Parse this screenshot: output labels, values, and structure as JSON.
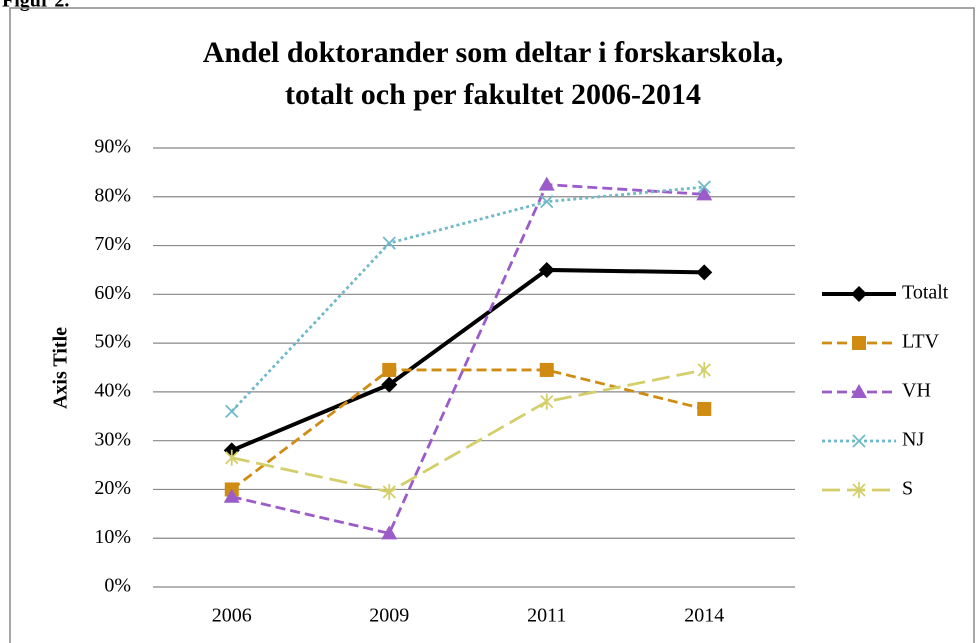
{
  "figure_label": "Figur 2.",
  "chart_data": {
    "type": "line",
    "title": [
      "Andel doktorander som deltar i forskarskola,",
      "totalt och per fakultet 2006-2014"
    ],
    "y_axis_label": "Axis Title",
    "categories": [
      "2006",
      "2009",
      "2011",
      "2014"
    ],
    "ylim": [
      0,
      90
    ],
    "yticks": [
      {
        "value": 0,
        "label": "0%"
      },
      {
        "value": 10,
        "label": "10%"
      },
      {
        "value": 20,
        "label": "20%"
      },
      {
        "value": 30,
        "label": "30%"
      },
      {
        "value": 40,
        "label": "40%"
      },
      {
        "value": 50,
        "label": "50%"
      },
      {
        "value": 60,
        "label": "60%"
      },
      {
        "value": 70,
        "label": "70%"
      },
      {
        "value": 80,
        "label": "80%"
      },
      {
        "value": 90,
        "label": "90%"
      }
    ],
    "grid": true,
    "legend": "right",
    "series": [
      {
        "name": "Totalt",
        "color": "#000000",
        "marker": "diamond",
        "dash": "solid",
        "values": [
          28,
          41.5,
          65,
          64.5
        ]
      },
      {
        "name": "LTV",
        "color": "#d08c12",
        "marker": "square",
        "dash": "dashed",
        "values": [
          20,
          44.5,
          44.5,
          36.5
        ]
      },
      {
        "name": "VH",
        "color": "#9b5bc9",
        "marker": "triangle",
        "dash": "dashed",
        "values": [
          18.5,
          11,
          82.5,
          80.5
        ]
      },
      {
        "name": "NJ",
        "color": "#6fb9c9",
        "marker": "x",
        "dash": "dotted",
        "values": [
          36,
          70.5,
          79,
          82
        ]
      },
      {
        "name": "S",
        "color": "#d4cf6a",
        "marker": "star",
        "dash": "longdash",
        "values": [
          26.5,
          19.5,
          38,
          44.5
        ]
      }
    ]
  }
}
